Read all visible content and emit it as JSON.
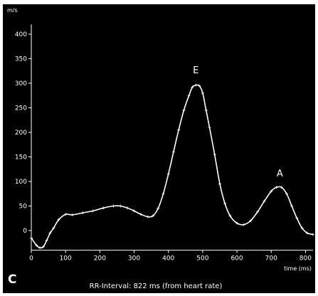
{
  "chart_data": {
    "type": "line",
    "panel_label": "C",
    "ylabel": "m/s",
    "xlabel": "time (ms)",
    "caption": "RR-Interval: 822 ms (from heart rate)",
    "xlim": [
      0,
      822
    ],
    "ylim": [
      -40,
      420
    ],
    "x_ticks": [
      0,
      100,
      200,
      300,
      400,
      500,
      600,
      700,
      800
    ],
    "y_ticks": [
      0,
      50,
      100,
      150,
      200,
      250,
      300,
      350,
      400
    ],
    "grid": false,
    "colors": {
      "background": "#000000",
      "line": "#ffffff",
      "text": "#ffffff"
    },
    "annotations": [
      {
        "text": "E",
        "x": 480,
        "y": 300
      },
      {
        "text": "A",
        "x": 725,
        "y": 90
      }
    ],
    "series": [
      {
        "x": [
          0,
          15,
          25,
          35,
          45,
          55,
          65,
          80,
          100,
          120,
          150,
          180,
          210,
          240,
          260,
          280,
          300,
          320,
          340,
          355,
          370,
          385,
          400,
          415,
          430,
          445,
          460,
          470,
          480,
          490,
          500,
          510,
          520,
          535,
          550,
          565,
          580,
          600,
          620,
          640,
          660,
          680,
          700,
          715,
          730,
          745,
          760,
          775,
          790,
          805,
          822
        ],
        "y": [
          -15,
          -30,
          -35,
          -33,
          -20,
          -5,
          5,
          22,
          33,
          32,
          36,
          40,
          46,
          50,
          50,
          46,
          40,
          33,
          28,
          30,
          45,
          75,
          115,
          160,
          205,
          245,
          275,
          292,
          296,
          295,
          280,
          245,
          210,
          155,
          95,
          55,
          30,
          15,
          12,
          20,
          38,
          60,
          80,
          88,
          88,
          75,
          50,
          25,
          5,
          -5,
          -8
        ]
      }
    ]
  }
}
